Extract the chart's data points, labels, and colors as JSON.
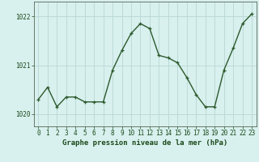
{
  "x": [
    0,
    1,
    2,
    3,
    4,
    5,
    6,
    7,
    8,
    9,
    10,
    11,
    12,
    13,
    14,
    15,
    16,
    17,
    18,
    19,
    20,
    21,
    22,
    23
  ],
  "y": [
    1020.3,
    1020.55,
    1020.15,
    1020.35,
    1020.35,
    1020.25,
    1020.25,
    1020.25,
    1020.9,
    1021.3,
    1021.65,
    1021.85,
    1021.75,
    1021.2,
    1021.15,
    1021.05,
    1020.75,
    1020.4,
    1020.15,
    1020.15,
    1020.9,
    1021.35,
    1021.85,
    1022.05
  ],
  "line_color": "#2d5a2d",
  "marker": "+",
  "marker_size": 3.5,
  "line_width": 1.0,
  "bg_color": "#d8f0ee",
  "grid_color": "#b8d8d4",
  "xlabel": "Graphe pression niveau de la mer (hPa)",
  "xlabel_color": "#1a4a1a",
  "xlabel_fontsize": 6.5,
  "tick_color": "#1a4a1a",
  "tick_fontsize": 5.5,
  "ylim": [
    1019.75,
    1022.3
  ],
  "yticks": [
    1020,
    1021,
    1022
  ],
  "xticks": [
    0,
    1,
    2,
    3,
    4,
    5,
    6,
    7,
    8,
    9,
    10,
    11,
    12,
    13,
    14,
    15,
    16,
    17,
    18,
    19,
    20,
    21,
    22,
    23
  ],
  "spine_color": "#556655"
}
